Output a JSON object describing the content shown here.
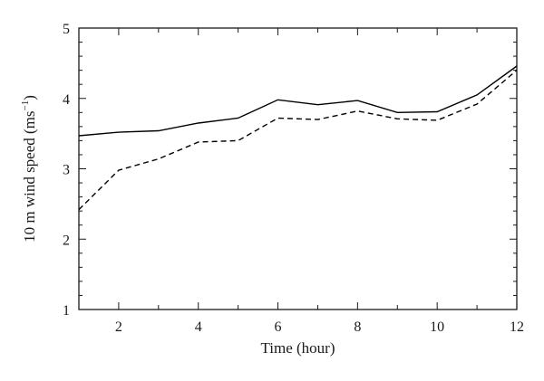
{
  "chart_data": {
    "type": "line",
    "title": "",
    "xlabel": "Time (hour)",
    "ylabel_main": "10 m wind speed (ms",
    "ylabel_sup": "−1",
    "ylabel_close": ")",
    "xlim": [
      1,
      12
    ],
    "ylim": [
      1,
      5
    ],
    "x_ticks_major": [
      2,
      4,
      6,
      8,
      10,
      12
    ],
    "y_ticks_major": [
      1,
      2,
      3,
      4,
      5
    ],
    "grid": false,
    "legend": "none",
    "x": [
      1,
      2,
      3,
      4,
      5,
      6,
      7,
      8,
      9,
      10,
      11,
      12
    ],
    "series": [
      {
        "style": "solid",
        "color": "#000000",
        "values": [
          3.47,
          3.52,
          3.54,
          3.65,
          3.72,
          3.98,
          3.91,
          3.97,
          3.8,
          3.81,
          4.05,
          4.46
        ]
      },
      {
        "style": "dashed",
        "color": "#000000",
        "values": [
          2.42,
          2.98,
          3.14,
          3.38,
          3.4,
          3.72,
          3.7,
          3.82,
          3.71,
          3.69,
          3.92,
          4.4
        ]
      }
    ]
  }
}
